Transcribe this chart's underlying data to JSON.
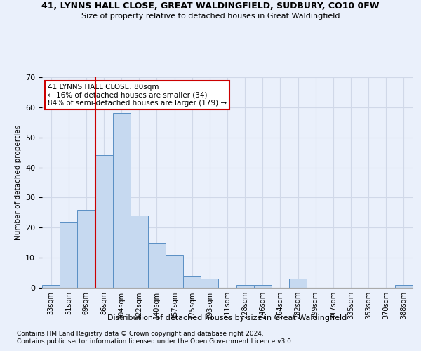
{
  "title": "41, LYNNS HALL CLOSE, GREAT WALDINGFIELD, SUDBURY, CO10 0FW",
  "subtitle": "Size of property relative to detached houses in Great Waldingfield",
  "xlabel": "Distribution of detached houses by size in Great Waldingfield",
  "ylabel": "Number of detached properties",
  "footnote1": "Contains HM Land Registry data © Crown copyright and database right 2024.",
  "footnote2": "Contains public sector information licensed under the Open Government Licence v3.0.",
  "bin_labels": [
    "33sqm",
    "51sqm",
    "69sqm",
    "86sqm",
    "104sqm",
    "122sqm",
    "140sqm",
    "157sqm",
    "175sqm",
    "193sqm",
    "211sqm",
    "228sqm",
    "246sqm",
    "264sqm",
    "282sqm",
    "299sqm",
    "317sqm",
    "335sqm",
    "353sqm",
    "370sqm",
    "388sqm"
  ],
  "bar_values": [
    1,
    22,
    26,
    44,
    58,
    24,
    15,
    11,
    4,
    3,
    0,
    1,
    1,
    0,
    3,
    0,
    0,
    0,
    0,
    0,
    1
  ],
  "bar_color": "#c6d9f0",
  "bar_edge_color": "#5a8fc4",
  "grid_color": "#d0d8e8",
  "background_color": "#eaf0fb",
  "vline_bin_index": 2.52,
  "annotation_text": "41 LYNNS HALL CLOSE: 80sqm\n← 16% of detached houses are smaller (34)\n84% of semi-detached houses are larger (179) →",
  "annotation_box_color": "#ffffff",
  "annotation_border_color": "#cc0000",
  "ylim": [
    0,
    70
  ],
  "yticks": [
    0,
    10,
    20,
    30,
    40,
    50,
    60,
    70
  ]
}
